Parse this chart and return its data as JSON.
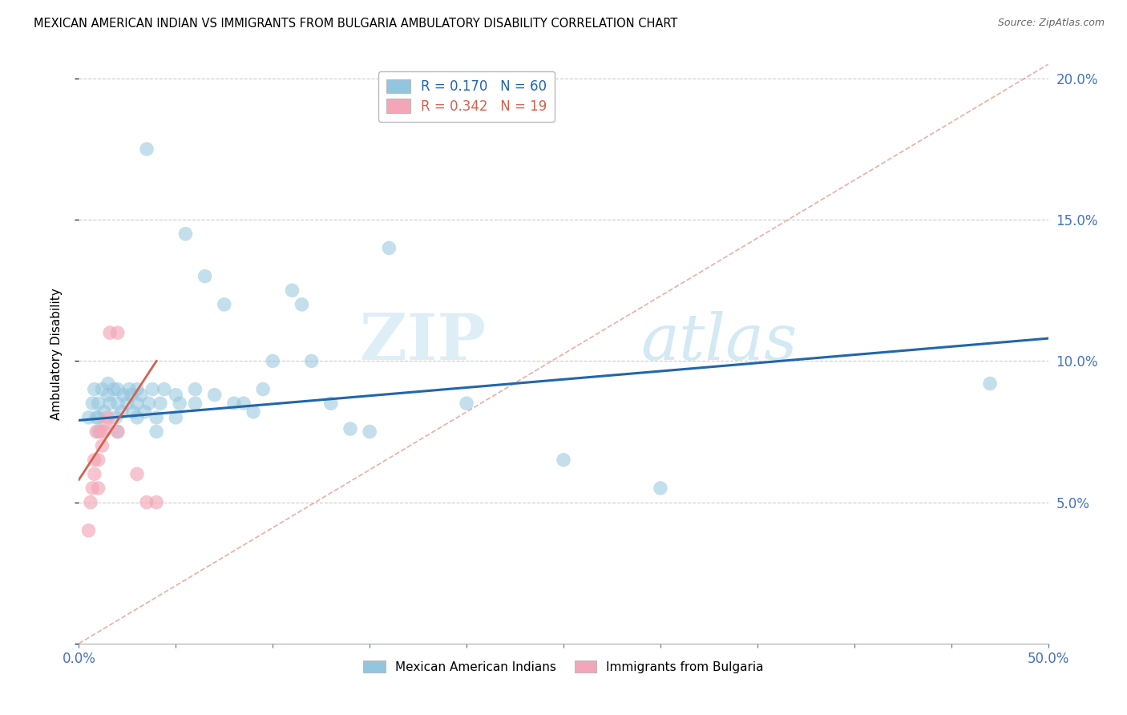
{
  "title": "MEXICAN AMERICAN INDIAN VS IMMIGRANTS FROM BULGARIA AMBULATORY DISABILITY CORRELATION CHART",
  "source": "Source: ZipAtlas.com",
  "ylabel": "Ambulatory Disability",
  "xlim": [
    0.0,
    0.5
  ],
  "ylim": [
    0.0,
    0.205
  ],
  "xticks": [
    0.0,
    0.05,
    0.1,
    0.15,
    0.2,
    0.25,
    0.3,
    0.35,
    0.4,
    0.45,
    0.5
  ],
  "yticks": [
    0.0,
    0.05,
    0.1,
    0.15,
    0.2
  ],
  "blue_R": "0.170",
  "blue_N": "60",
  "pink_R": "0.342",
  "pink_N": "19",
  "blue_color": "#92c5de",
  "pink_color": "#f4a6b8",
  "blue_line_color": "#2166ac",
  "pink_line_color": "#d6604d",
  "diag_line_color": "#d6604d",
  "watermark_zip": "ZIP",
  "watermark_atlas": "atlas",
  "legend_label_blue": "Mexican American Indians",
  "legend_label_pink": "Immigrants from Bulgaria",
  "blue_x": [
    0.005,
    0.007,
    0.008,
    0.009,
    0.01,
    0.01,
    0.01,
    0.012,
    0.013,
    0.015,
    0.015,
    0.016,
    0.018,
    0.019,
    0.02,
    0.02,
    0.02,
    0.022,
    0.023,
    0.025,
    0.026,
    0.027,
    0.028,
    0.03,
    0.03,
    0.03,
    0.032,
    0.034,
    0.035,
    0.036,
    0.038,
    0.04,
    0.04,
    0.042,
    0.044,
    0.05,
    0.05,
    0.052,
    0.055,
    0.06,
    0.06,
    0.065,
    0.07,
    0.075,
    0.08,
    0.085,
    0.09,
    0.095,
    0.1,
    0.11,
    0.115,
    0.12,
    0.13,
    0.14,
    0.15,
    0.16,
    0.2,
    0.25,
    0.3,
    0.47
  ],
  "blue_y": [
    0.08,
    0.085,
    0.09,
    0.08,
    0.075,
    0.08,
    0.085,
    0.09,
    0.082,
    0.088,
    0.092,
    0.085,
    0.09,
    0.08,
    0.075,
    0.085,
    0.09,
    0.082,
    0.088,
    0.085,
    0.09,
    0.088,
    0.082,
    0.08,
    0.085,
    0.09,
    0.088,
    0.082,
    0.175,
    0.085,
    0.09,
    0.075,
    0.08,
    0.085,
    0.09,
    0.08,
    0.088,
    0.085,
    0.145,
    0.085,
    0.09,
    0.13,
    0.088,
    0.12,
    0.085,
    0.085,
    0.082,
    0.09,
    0.1,
    0.125,
    0.12,
    0.1,
    0.085,
    0.076,
    0.075,
    0.14,
    0.085,
    0.065,
    0.055,
    0.092
  ],
  "pink_x": [
    0.005,
    0.006,
    0.007,
    0.008,
    0.008,
    0.009,
    0.01,
    0.01,
    0.011,
    0.012,
    0.013,
    0.014,
    0.015,
    0.016,
    0.02,
    0.02,
    0.03,
    0.035,
    0.04
  ],
  "pink_y": [
    0.04,
    0.05,
    0.055,
    0.06,
    0.065,
    0.075,
    0.055,
    0.065,
    0.075,
    0.07,
    0.075,
    0.078,
    0.08,
    0.11,
    0.075,
    0.11,
    0.06,
    0.05,
    0.05
  ],
  "blue_trend_x": [
    0.0,
    0.5
  ],
  "blue_trend_y": [
    0.079,
    0.108
  ],
  "pink_trend_x": [
    0.0,
    0.04
  ],
  "pink_trend_y": [
    0.058,
    0.1
  ],
  "diag_trend_x": [
    0.0,
    0.5
  ],
  "diag_trend_y": [
    0.0,
    0.205
  ]
}
